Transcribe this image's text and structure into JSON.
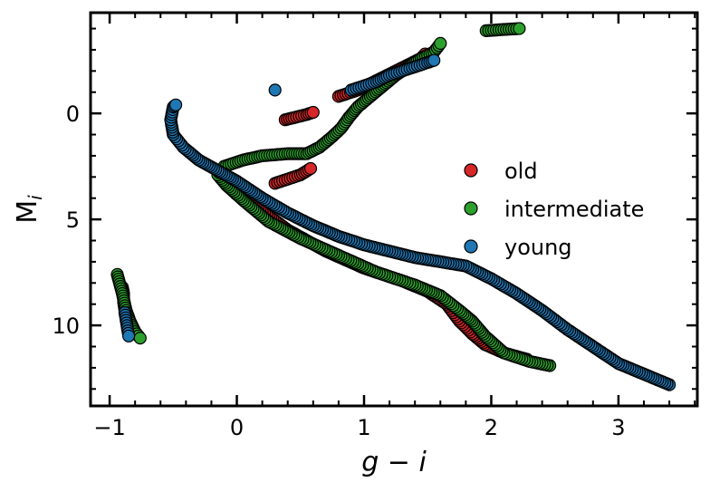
{
  "chart_data": {
    "type": "scatter",
    "xlabel_main": "g − i",
    "ylabel_main": "M",
    "ylabel_sub": "i",
    "xlim": [
      -1.15,
      3.62
    ],
    "ylim": [
      13.8,
      -4.75
    ],
    "y_inverted": true,
    "x_ticks": [
      -1,
      0,
      1,
      2,
      3
    ],
    "x_tick_labels": [
      "−1",
      "0",
      "1",
      "2",
      "3"
    ],
    "y_ticks": [
      0,
      5,
      10
    ],
    "y_tick_labels": [
      "0",
      "5",
      "10"
    ],
    "grid": false,
    "legend_placement": "center-right",
    "series": [
      {
        "name": "old",
        "color": "#d62728",
        "segments": [
          [
            [
              -0.9,
              8.2
            ],
            [
              -0.89,
              8.5
            ],
            [
              -0.89,
              8.9
            ],
            [
              -0.88,
              9.3
            ],
            [
              -0.87,
              9.6
            ]
          ],
          [
            [
              2.28,
              11.6
            ],
            [
              2.1,
              11.3
            ],
            [
              1.95,
              10.9
            ],
            [
              1.85,
              10.4
            ],
            [
              1.75,
              9.8
            ],
            [
              1.65,
              9.0
            ],
            [
              1.5,
              8.4
            ],
            [
              1.3,
              7.9
            ],
            [
              1.0,
              7.3
            ],
            [
              0.7,
              6.5
            ],
            [
              0.4,
              5.5
            ],
            [
              0.15,
              4.4
            ],
            [
              0.0,
              3.6
            ],
            [
              -0.12,
              2.8
            ]
          ],
          [
            [
              0.3,
              3.3
            ],
            [
              0.4,
              3.1
            ],
            [
              0.5,
              2.9
            ],
            [
              0.58,
              2.6
            ]
          ],
          [
            [
              0.38,
              0.3
            ],
            [
              0.45,
              0.2
            ],
            [
              0.55,
              0.05
            ],
            [
              0.6,
              -0.05
            ]
          ],
          [
            [
              0.8,
              -0.8
            ],
            [
              0.95,
              -1.1
            ],
            [
              1.05,
              -1.4
            ],
            [
              1.15,
              -1.7
            ],
            [
              1.25,
              -2.0
            ],
            [
              1.35,
              -2.3
            ],
            [
              1.45,
              -2.6
            ],
            [
              1.48,
              -2.8
            ]
          ]
        ]
      },
      {
        "name": "intermediate",
        "color": "#2ca02c",
        "segments": [
          [
            [
              -0.94,
              7.6
            ],
            [
              -0.9,
              8.5
            ],
            [
              -0.87,
              9.3
            ],
            [
              -0.84,
              9.8
            ],
            [
              -0.8,
              10.3
            ],
            [
              -0.76,
              10.6
            ]
          ],
          [
            [
              2.46,
              11.9
            ],
            [
              2.3,
              11.7
            ],
            [
              2.1,
              11.3
            ],
            [
              1.95,
              10.5
            ],
            [
              1.85,
              9.8
            ],
            [
              1.75,
              9.3
            ],
            [
              1.6,
              8.6
            ],
            [
              1.4,
              8.1
            ],
            [
              1.1,
              7.5
            ],
            [
              0.8,
              6.7
            ],
            [
              0.5,
              5.9
            ],
            [
              0.25,
              5.1
            ],
            [
              0.05,
              4.1
            ],
            [
              -0.08,
              3.4
            ],
            [
              -0.15,
              2.9
            ],
            [
              -0.1,
              2.5
            ],
            [
              0.05,
              2.2
            ],
            [
              0.2,
              2.0
            ],
            [
              0.4,
              1.9
            ],
            [
              0.55,
              1.9
            ],
            [
              0.65,
              1.6
            ],
            [
              0.75,
              1.1
            ],
            [
              0.82,
              0.7
            ],
            [
              0.88,
              0.2
            ],
            [
              0.95,
              -0.3
            ],
            [
              1.05,
              -0.8
            ],
            [
              1.15,
              -1.3
            ],
            [
              1.25,
              -1.8
            ],
            [
              1.35,
              -2.2
            ],
            [
              1.45,
              -2.6
            ],
            [
              1.55,
              -2.9
            ],
            [
              1.6,
              -3.3
            ]
          ],
          [
            [
              1.96,
              -3.9
            ],
            [
              2.08,
              -3.95
            ],
            [
              2.22,
              -4.0
            ]
          ]
        ]
      },
      {
        "name": "young",
        "color": "#1f77b4",
        "segments": [
          [
            [
              -0.88,
              9.4
            ],
            [
              -0.85,
              10.5
            ]
          ],
          [
            [
              3.4,
              12.8
            ],
            [
              3.2,
              12.3
            ],
            [
              3.0,
              11.8
            ],
            [
              2.8,
              11.0
            ],
            [
              2.6,
              10.2
            ],
            [
              2.4,
              9.3
            ],
            [
              2.2,
              8.5
            ],
            [
              2.0,
              7.8
            ],
            [
              1.8,
              7.2
            ],
            [
              1.6,
              7.0
            ],
            [
              1.4,
              6.8
            ],
            [
              1.2,
              6.5
            ],
            [
              1.0,
              6.2
            ],
            [
              0.8,
              5.8
            ],
            [
              0.6,
              5.3
            ],
            [
              0.4,
              4.7
            ],
            [
              0.2,
              4.0
            ],
            [
              0.0,
              3.2
            ],
            [
              -0.15,
              2.7
            ],
            [
              -0.3,
              2.2
            ],
            [
              -0.42,
              1.6
            ],
            [
              -0.5,
              1.0
            ],
            [
              -0.52,
              0.3
            ],
            [
              -0.5,
              -0.3
            ],
            [
              -0.48,
              -0.4
            ]
          ],
          [
            [
              0.3,
              -1.1
            ]
          ],
          [
            [
              0.9,
              -1.1
            ],
            [
              1.0,
              -1.3
            ],
            [
              1.1,
              -1.5
            ],
            [
              1.2,
              -1.8
            ],
            [
              1.3,
              -2.0
            ],
            [
              1.4,
              -2.2
            ],
            [
              1.5,
              -2.4
            ],
            [
              1.55,
              -2.5
            ]
          ]
        ]
      }
    ]
  }
}
